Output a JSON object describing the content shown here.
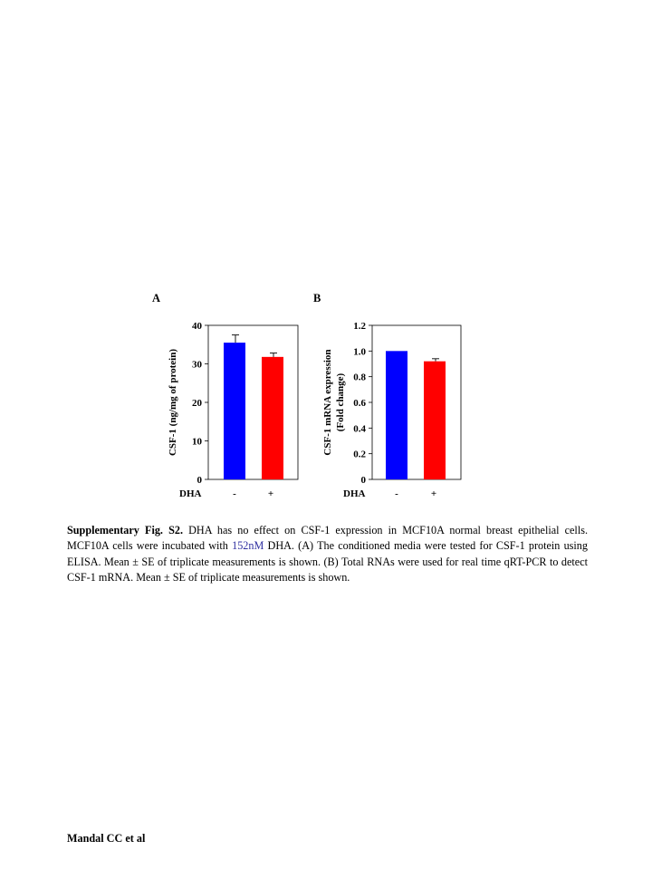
{
  "figure": {
    "panels": [
      {
        "letter": "A",
        "ylabel_lines": [
          "CSF-1 (ng/mg of protein)"
        ],
        "ticks": [
          "0",
          "10",
          "20",
          "30",
          "40"
        ],
        "treatment_label": "DHA",
        "treatment_levels": [
          "-",
          "+"
        ]
      },
      {
        "letter": "B",
        "ylabel_lines": [
          "CSF-1 mRNA expression",
          "(Fold change)"
        ],
        "ticks": [
          "0",
          "0.2",
          "0.4",
          "0.6",
          "0.8",
          "1.0",
          "1.2"
        ],
        "treatment_label": "DHA",
        "treatment_levels": [
          "-",
          "+"
        ]
      }
    ]
  },
  "chart_data": [
    {
      "type": "bar",
      "panel": "A",
      "ylabel": "CSF-1 (ng/mg of protein)",
      "xlabel": "DHA",
      "categories": [
        "-",
        "+"
      ],
      "values": [
        35.5,
        31.8
      ],
      "errors": [
        2.0,
        1.0
      ],
      "colors": [
        "#0000ff",
        "#ff0000"
      ],
      "ylim": [
        0,
        40
      ],
      "grid": false
    },
    {
      "type": "bar",
      "panel": "B",
      "ylabel": "CSF-1 mRNA expression (Fold change)",
      "xlabel": "DHA",
      "categories": [
        "-",
        "+"
      ],
      "values": [
        1.0,
        0.92
      ],
      "errors": [
        0.0,
        0.02
      ],
      "colors": [
        "#0000ff",
        "#ff0000"
      ],
      "ylim": [
        0,
        1.2
      ],
      "grid": false
    }
  ],
  "caption": {
    "lead": "Supplementary Fig. S2.",
    "part1": " DHA has no effect on CSF-1 expression in MCF10A normal breast epithelial cells. MCF10A cells were incubated with ",
    "highlight": "152nM",
    "part2": " DHA. (A) The conditioned media were tested for CSF-1 protein using ELISA. Mean ± SE of triplicate measurements is shown. (B) Total RNAs were used for real time qRT-PCR to detect CSF-1 mRNA. Mean ± SE of triplicate measurements is shown."
  },
  "footer": "Mandal CC et al"
}
